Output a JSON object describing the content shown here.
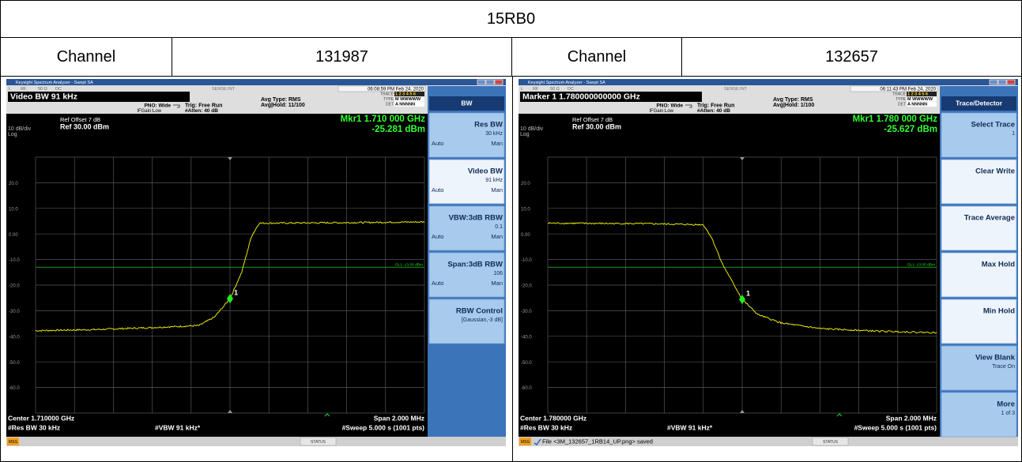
{
  "table": {
    "title": "15RB0",
    "rows": [
      [
        "Channel",
        "131987",
        "Channel",
        "132657"
      ]
    ]
  },
  "screens": [
    {
      "window_title": "Keysight Spectrum Analyzer - Swept SA",
      "input": [
        "L",
        "RF",
        "50 Ω",
        "DC"
      ],
      "sense": "SENSE:INT",
      "timestamp": "06:08:59 PM Feb 24, 2020",
      "active_function": "Video BW 91 kHz",
      "pno": "PNO: Wide",
      "ifgain": "IFGain:Low",
      "trig": "Trig: Free Run",
      "atten": "#Atten: 40 dB",
      "avg_type": "Avg Type: RMS",
      "avg_hold": "Avg|Hold: 11/100",
      "trace_rows": [
        [
          "TRACE",
          "1 2 3 4 5 6"
        ],
        [
          "TYPE",
          "M WWWWW"
        ],
        [
          "DET",
          "A NNNNN"
        ]
      ],
      "ref_offset": "Ref Offset 7 dB",
      "ref_level": "Ref 30.00 dBm",
      "scale": "10 dB/div",
      "scale_type": "Log",
      "marker_freq": "Mkr1 1.710 000 GHz",
      "marker_level": "-25.281 dBm",
      "y_labels": [
        "20.0",
        "10.0",
        "0.00",
        "-10.0",
        "-20.0",
        "-30.0",
        "-40.0",
        "-50.0",
        "-60.0"
      ],
      "display_line": "DL1 -13.00 dBm",
      "marker_label": "1",
      "center": "Center 1.710000 GHz",
      "res_bw": "#Res BW 30 kHz",
      "vbw": "#VBW 91 kHz*",
      "span": "Span 2.000 MHz",
      "sweep": "#Sweep  5.000 s (1001 pts)",
      "msg_tag": "MSG",
      "status": "STATUS",
      "menu_title": "BW",
      "keys": [
        {
          "label": "Res BW",
          "value": "30 kHz",
          "auto": "Auto",
          "man": "Man"
        },
        {
          "label": "Video BW",
          "value": "91 kHz",
          "auto": "Auto",
          "man": "Man",
          "highlight": true
        },
        {
          "label": "VBW:3dB RBW",
          "value": "0.1",
          "auto": "Auto",
          "man": "Man"
        },
        {
          "label": "Span:3dB RBW",
          "value": "106",
          "auto": "Auto",
          "man": "Man"
        },
        {
          "label": "RBW Control",
          "value": "[Gaussian,-3 dB]"
        }
      ]
    },
    {
      "window_title": "Keysight Spectrum Analyzer - Swept SA",
      "input": [
        "L",
        "RF",
        "50 Ω",
        "DC"
      ],
      "sense": "SENSE:INT",
      "timestamp": "06:11:43 PM Feb 24, 2020",
      "active_function": "Marker 1 1.780000000000 GHz",
      "pno": "PNO: Wide",
      "ifgain": "IFGain:Low",
      "trig": "Trig: Free Run",
      "atten": "#Atten: 40 dB",
      "avg_type": "Avg Type: RMS",
      "avg_hold": "Avg|Hold: 1/100",
      "trace_rows": [
        [
          "TRACE",
          "1 2 3 4 5 6"
        ],
        [
          "TYPE",
          "M WWWWW"
        ],
        [
          "DET",
          "A NNNNN"
        ]
      ],
      "ref_offset": "Ref Offset 7 dB",
      "ref_level": "Ref 30.00 dBm",
      "scale": "10 dB/div",
      "scale_type": "Log",
      "marker_freq": "Mkr1 1.780 000 GHz",
      "marker_level": "-25.627 dBm",
      "y_labels": [
        "20.0",
        "10.0",
        "0.00",
        "-10.0",
        "-20.0",
        "-30.0",
        "-40.0",
        "-50.0",
        "-60.0"
      ],
      "display_line": "DL1 -13.00 dBm",
      "marker_label": "1",
      "center": "Center 1.780000 GHz",
      "res_bw": "#Res BW 30 kHz",
      "vbw": "#VBW 91 kHz*",
      "span": "Span 2.000 MHz",
      "sweep": "#Sweep  5.000 s (1001 pts)",
      "msg_tag": "MSG",
      "message": "File <3M_132657_1RB14_UP.png> saved",
      "status": "STATUS",
      "menu_title": "Trace/Detector",
      "keys": [
        {
          "label": "Select Trace",
          "value": "1"
        },
        {
          "label": "Clear Write",
          "highlight": true
        },
        {
          "label": "Trace Average",
          "highlight": true
        },
        {
          "label": "Max Hold",
          "highlight": true
        },
        {
          "label": "Min Hold",
          "highlight": true
        },
        {
          "label": "View Blank",
          "value": "Trace On"
        },
        {
          "label": "More",
          "value": "1 of 3"
        }
      ]
    }
  ]
}
